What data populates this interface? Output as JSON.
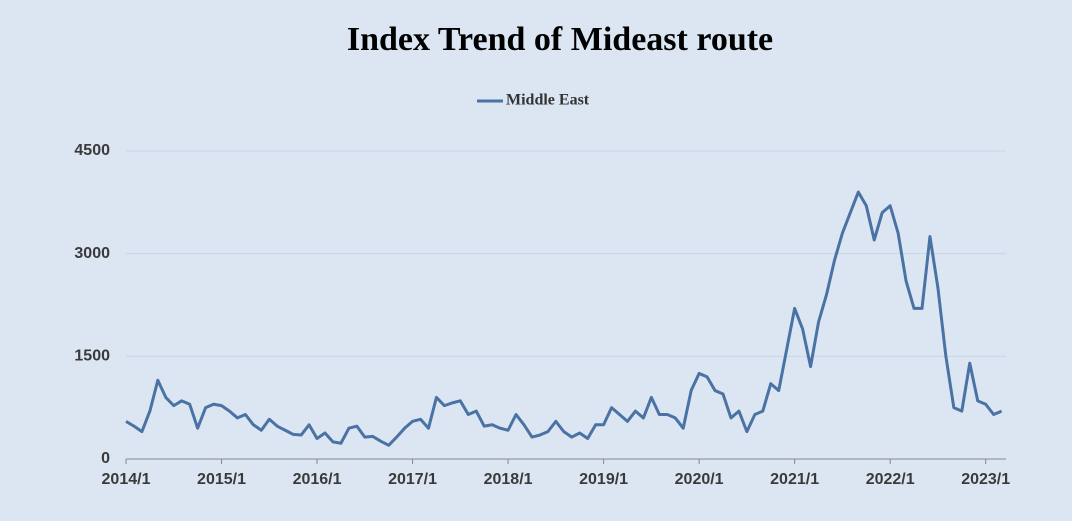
{
  "chart_data": {
    "type": "line",
    "title": "Index Trend of Mideast route",
    "categories": [
      "2014/1",
      null,
      null,
      null,
      null,
      null,
      null,
      null,
      null,
      null,
      null,
      null,
      "2015/1",
      null,
      null,
      null,
      null,
      null,
      null,
      null,
      null,
      null,
      null,
      null,
      "2016/1",
      null,
      null,
      null,
      null,
      null,
      null,
      null,
      null,
      null,
      null,
      null,
      "2017/1",
      null,
      null,
      null,
      null,
      null,
      null,
      null,
      null,
      null,
      null,
      null,
      "2018/1",
      null,
      null,
      null,
      null,
      null,
      null,
      null,
      null,
      null,
      null,
      null,
      "2019/1",
      null,
      null,
      null,
      null,
      null,
      null,
      null,
      null,
      null,
      null,
      null,
      "2020/1",
      null,
      null,
      null,
      null,
      null,
      null,
      null,
      null,
      null,
      null,
      null,
      "2021/1",
      null,
      null,
      null,
      null,
      null,
      null,
      null,
      null,
      null,
      null,
      null,
      "2022/1",
      null,
      null,
      null,
      null,
      null,
      null,
      null,
      null,
      null,
      null,
      null,
      "2023/1",
      null,
      null
    ],
    "series": [
      {
        "name": "Middle East",
        "color": "#4a72a5",
        "values": [
          550,
          480,
          400,
          700,
          1150,
          900,
          780,
          850,
          800,
          450,
          750,
          800,
          780,
          700,
          600,
          650,
          500,
          420,
          580,
          480,
          420,
          360,
          350,
          500,
          300,
          380,
          250,
          230,
          450,
          480,
          320,
          330,
          260,
          200,
          320,
          450,
          550,
          580,
          450,
          900,
          780,
          820,
          850,
          650,
          700,
          480,
          500,
          450,
          420,
          650,
          500,
          320,
          350,
          400,
          550,
          400,
          320,
          380,
          300,
          500,
          500,
          750,
          650,
          550,
          700,
          600,
          900,
          650,
          650,
          600,
          450,
          1000,
          1250,
          1200,
          1000,
          950,
          600,
          700,
          400,
          650,
          700,
          1100,
          1000,
          1600,
          2200,
          1900,
          1350,
          2000,
          2400,
          2900,
          3300,
          3600,
          3900,
          3700,
          3200,
          3600,
          3700,
          3300,
          2600,
          2200,
          2200,
          3250,
          2500,
          1500,
          750,
          700,
          1400,
          850,
          800,
          650,
          700
        ]
      }
    ],
    "ylim": [
      0,
      4500
    ],
    "yticks": [
      0,
      1500,
      3000,
      4500
    ],
    "grid": true
  }
}
